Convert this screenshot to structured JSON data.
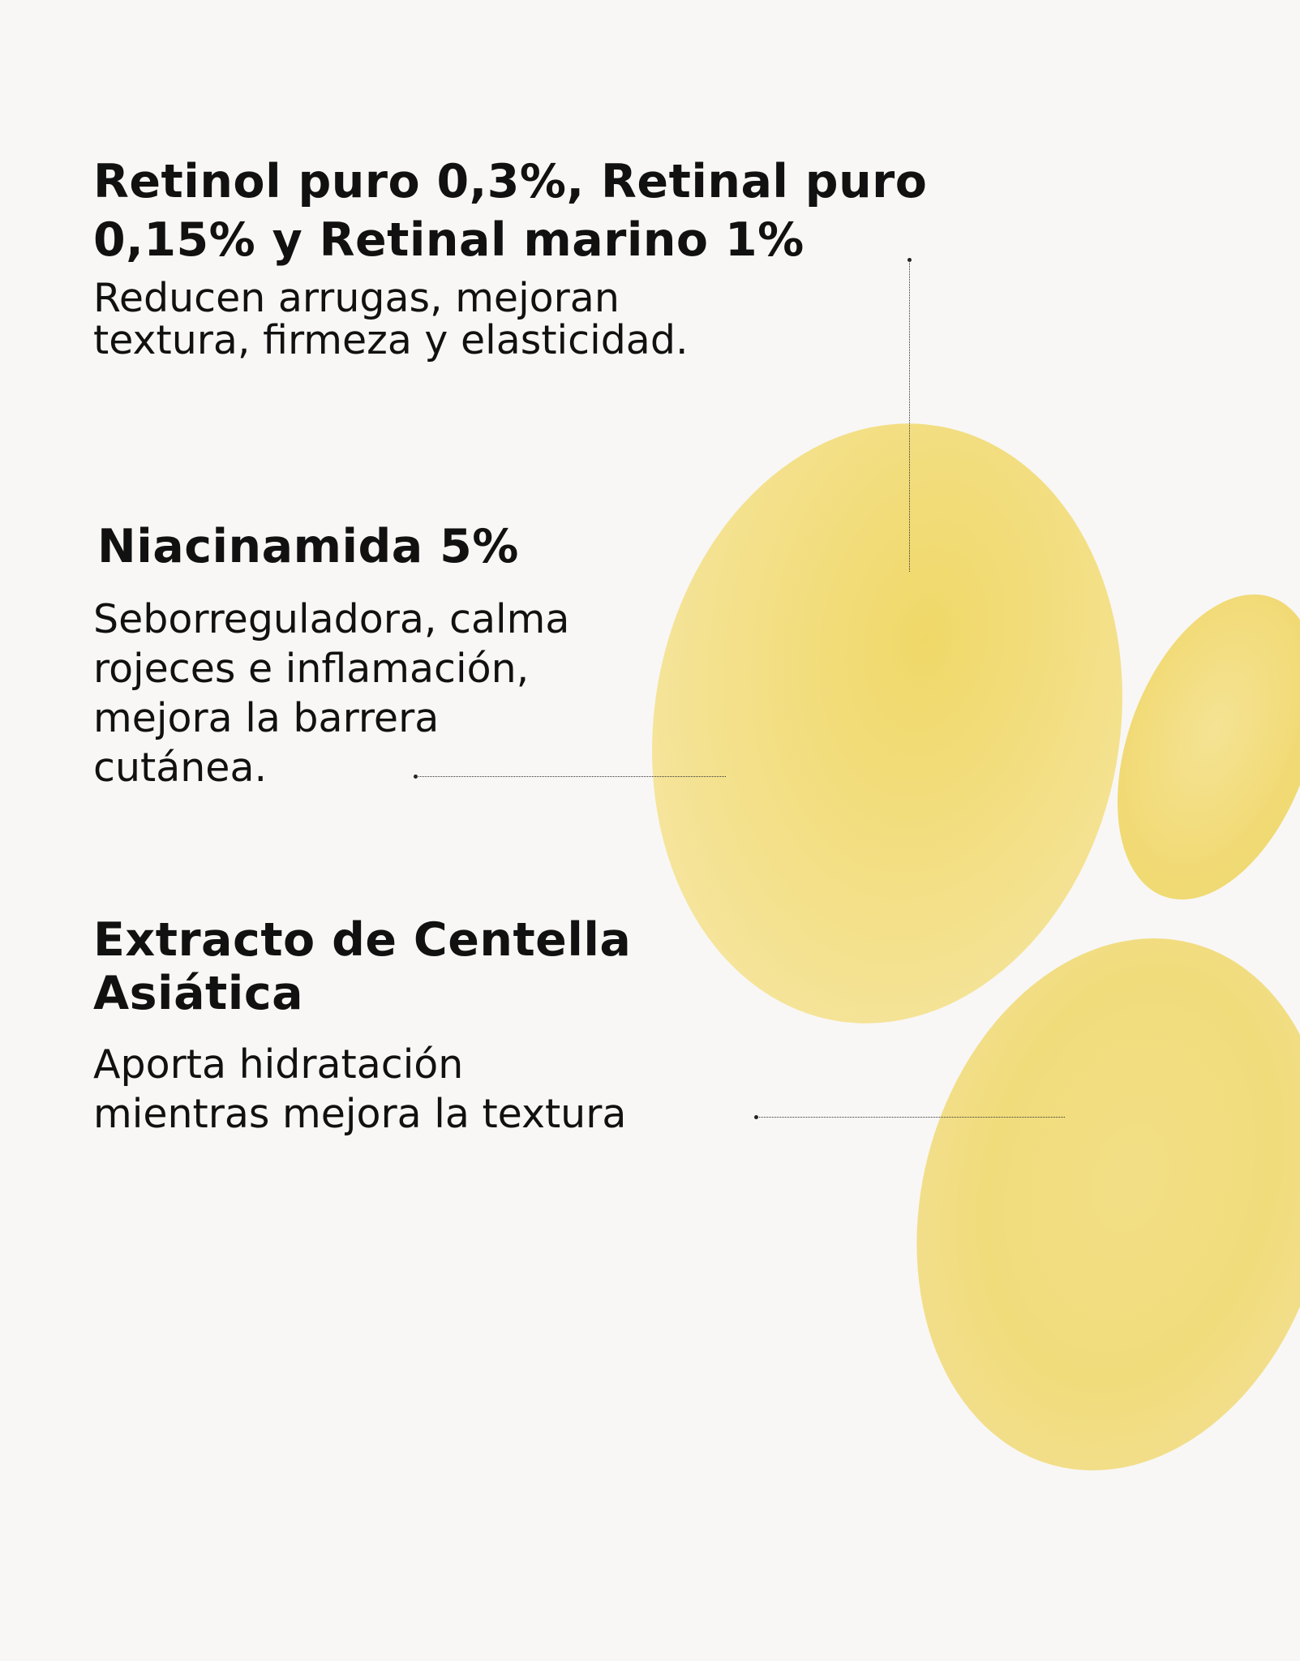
{
  "colors": {
    "background": "#f8f7f5",
    "blob": "#f2dc7a",
    "text": "#111111"
  },
  "sections": [
    {
      "title_lines": [
        "Retinol puro 0,3%, Retinal puro",
        "0,15% y Retinal marino 1%"
      ],
      "desc_lines": [
        "Reducen arrugas, mejoran",
        "textura, firmeza y elasticidad."
      ]
    },
    {
      "title_lines": [
        "Niacinamida 5%"
      ],
      "desc_lines": [
        "Seborreguladora, calma",
        "rojeces e inflamación,",
        "mejora la barrera",
        "cutánea."
      ]
    },
    {
      "title_lines": [
        "Extracto de Centella",
        "Asiática"
      ],
      "desc_lines": [
        "Aporta hidratación",
        "mientras mejora la textura"
      ]
    }
  ]
}
